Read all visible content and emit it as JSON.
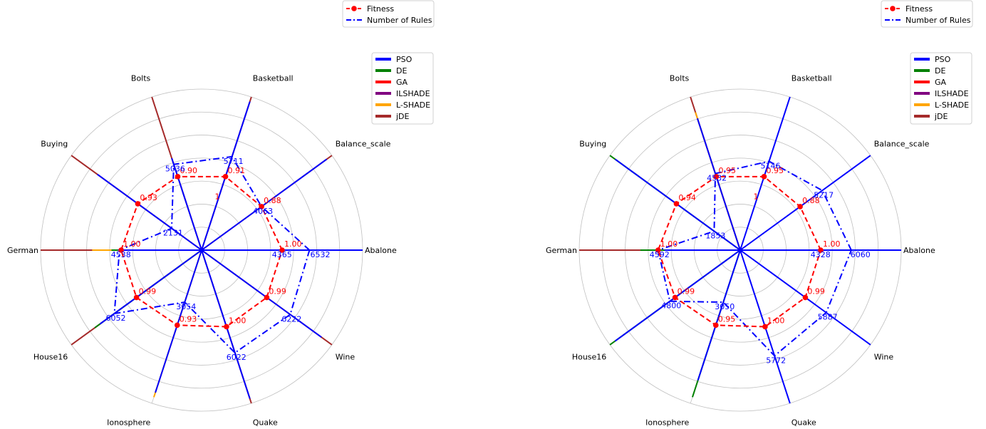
{
  "chart_data": [
    {
      "type": "radar",
      "categories": [
        "Abalone",
        "Balance_scale",
        "Basketball",
        "Bolts",
        "Buying",
        "German",
        "House16",
        "Ionosphere",
        "Quake",
        "Wine"
      ],
      "rlim": [
        0,
        1
      ],
      "grid": true,
      "method_legend": {
        "placement": "top-right",
        "entries": [
          "PSO",
          "DE",
          "GA",
          "ILSHADE",
          "L-SHADE",
          "jDE"
        ]
      },
      "metric_legend": {
        "placement": "top",
        "entries": [
          "Fitness",
          "Number of Rules"
        ]
      },
      "fitness_labels": [
        "1.00",
        "0.88",
        "0.91",
        "0.90",
        "0.93",
        "1.00",
        "0.99",
        "0.93",
        "1.00",
        "0.99"
      ],
      "fitness_radius": [
        0.5,
        0.46,
        0.48,
        0.48,
        0.49,
        0.5,
        0.5,
        0.49,
        0.5,
        0.5
      ],
      "rules_labels": [
        "4365",
        "4063",
        "5711",
        "5036",
        "2131",
        "4538",
        "6052",
        "3054",
        "6022",
        "6222"
      ],
      "rules_radius": [
        0.67,
        0.46,
        0.61,
        0.56,
        0.23,
        0.51,
        0.67,
        0.34,
        0.67,
        0.68
      ],
      "rules_value_radius": [
        0.49,
        0.46,
        0.61,
        0.56,
        0.23,
        0.51,
        0.67,
        0.34,
        0.67,
        0.68
      ],
      "extra_labels": [
        {
          "index": 0,
          "text": "6532",
          "radius": 0.71
        },
        {
          "index": 2,
          "text": "1",
          "radius": 0.38
        }
      ],
      "method_lengths": [
        {
          "name": "jDE",
          "values": [
            1.0,
            1.0,
            1.0,
            1.0,
            1.0,
            1.0,
            1.0,
            0.0,
            1.0,
            1.0
          ]
        },
        {
          "name": "L-SHADE",
          "values": [
            0.0,
            0.0,
            0.0,
            0.0,
            0.0,
            0.68,
            0.0,
            0.96,
            0.0,
            0.0
          ]
        },
        {
          "name": "DE",
          "values": [
            0.0,
            0.0,
            0.0,
            0.0,
            0.0,
            0.56,
            0.82,
            0.0,
            0.0,
            0.0
          ]
        },
        {
          "name": "PSO",
          "values": [
            1.0,
            0.96,
            0.97,
            0.6,
            0.8,
            0.52,
            0.78,
            0.93,
            0.97,
            0.92
          ]
        }
      ]
    },
    {
      "type": "radar",
      "categories": [
        "Abalone",
        "Balance_scale",
        "Basketball",
        "Bolts",
        "Buying",
        "German",
        "House16",
        "Ionosphere",
        "Quake",
        "Wine"
      ],
      "rlim": [
        0,
        1
      ],
      "grid": true,
      "method_legend": {
        "placement": "top-right",
        "entries": [
          "PSO",
          "DE",
          "GA",
          "ILSHADE",
          "L-SHADE",
          "jDE"
        ]
      },
      "metric_legend": {
        "placement": "top",
        "entries": [
          "Fitness",
          "Number of Rules"
        ]
      },
      "fitness_labels": [
        "1.00",
        "0.88",
        "0.95",
        "0.95",
        "0.94",
        "1.00",
        "0.99",
        "0.95",
        "1.00",
        "0.99"
      ],
      "fitness_radius": [
        0.5,
        0.46,
        0.48,
        0.48,
        0.49,
        0.51,
        0.5,
        0.49,
        0.5,
        0.5
      ],
      "rules_labels": [
        "4328",
        "5217",
        "5146",
        "4532",
        "1853",
        "4592",
        "4800",
        "3050",
        "5772",
        "5887"
      ],
      "rules_radius": [
        0.69,
        0.63,
        0.58,
        0.5,
        0.2,
        0.51,
        0.54,
        0.34,
        0.69,
        0.66
      ],
      "rules_value_radius": [
        0.49,
        0.63,
        0.58,
        0.5,
        0.2,
        0.51,
        0.54,
        0.34,
        0.69,
        0.66
      ],
      "extra_labels": [
        {
          "index": 0,
          "text": "6060",
          "radius": 0.72
        },
        {
          "index": 2,
          "text": "1",
          "radius": 0.38
        }
      ],
      "method_lengths": [
        {
          "name": "jDE",
          "values": [
            0.0,
            0.0,
            0.0,
            1.0,
            0.0,
            1.0,
            0.0,
            0.0,
            0.0,
            0.0
          ]
        },
        {
          "name": "L-SHADE",
          "values": [
            0.0,
            0.0,
            0.0,
            0.9,
            0.0,
            0.6,
            0.0,
            0.0,
            0.0,
            0.0
          ]
        },
        {
          "name": "DE",
          "values": [
            0.0,
            0.0,
            0.0,
            0.0,
            1.0,
            0.62,
            1.0,
            0.96,
            0.0,
            0.0
          ]
        },
        {
          "name": "PSO",
          "values": [
            1.0,
            1.0,
            1.0,
            0.86,
            0.96,
            0.47,
            0.96,
            0.85,
            1.0,
            1.0
          ]
        }
      ]
    }
  ],
  "colors": {
    "PSO": "#0000ff",
    "DE": "#008000",
    "GA": "#ff0000",
    "ILSHADE": "#800080",
    "L-SHADE": "#ffa500",
    "jDE": "#a52a2a",
    "fitness": "#ff0000",
    "rules": "#0000ff",
    "grid": "#c0c0c0"
  }
}
